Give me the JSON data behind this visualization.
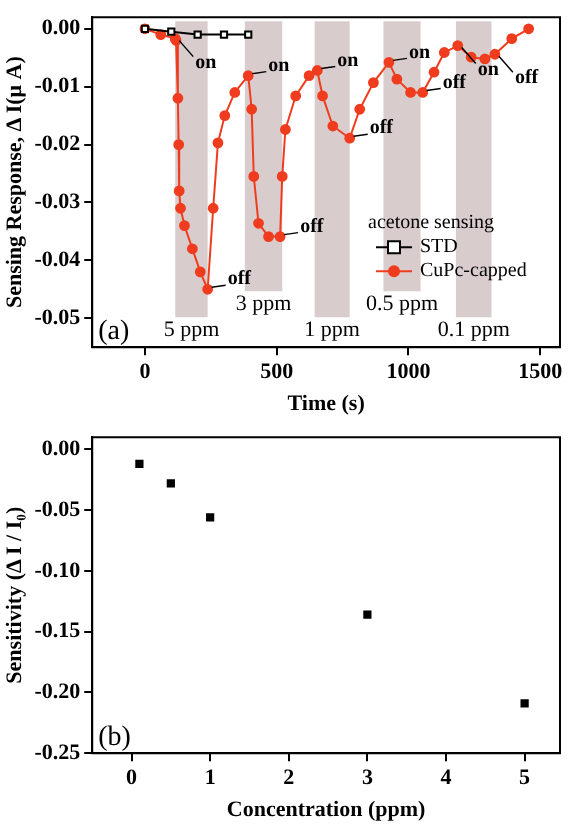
{
  "chart_data": [
    {
      "type": "line",
      "xlabel": "Time (s)",
      "ylabel": "Sensing Response, Δ I(μ A)",
      "legend_title": "acetone sensing",
      "legend": "bottom right",
      "grid": false,
      "xlim": [
        -200,
        1575
      ],
      "xticks": [
        0,
        500,
        1000,
        1500
      ],
      "ylim": [
        -0.055,
        0.002
      ],
      "yticks": [
        -0.05,
        -0.04,
        -0.03,
        -0.02,
        -0.01,
        {
          "value": 0,
          "label": "0.00"
        }
      ],
      "series": [
        {
          "name": "STD",
          "color": "#000000",
          "marker": "square",
          "x": [
            0,
            100,
            200,
            300,
            392
          ],
          "values": [
            0,
            -0.0005,
            -0.001,
            -0.001,
            -0.001
          ]
        },
        {
          "name": "CuPc-capped",
          "color": "#f03c1e",
          "marker": "circle",
          "x": [
            0,
            60,
            115,
            118,
            125,
            128,
            130,
            135,
            150,
            180,
            210,
            238,
            259,
            277,
            303,
            341,
            392,
            405,
            413,
            431,
            469,
            513,
            521,
            533,
            572,
            623,
            654,
            674,
            713,
            777,
            815,
            867,
            926,
            956,
            1008,
            1054,
            1097,
            1136,
            1187,
            1238,
            1290,
            1328,
            1392,
            1456
          ],
          "values": [
            0,
            -0.001,
            -0.0017,
            -0.002,
            -0.012,
            -0.02,
            -0.028,
            -0.031,
            -0.034,
            -0.038,
            -0.042,
            -0.045,
            -0.031,
            -0.0197,
            -0.015,
            -0.011,
            -0.0081,
            -0.0139,
            -0.0255,
            -0.0336,
            -0.0359,
            -0.0359,
            -0.0255,
            -0.0174,
            -0.0116,
            -0.0081,
            -0.0072,
            -0.0116,
            -0.0168,
            -0.0189,
            -0.0139,
            -0.0093,
            -0.0058,
            -0.0087,
            -0.011,
            -0.011,
            -0.0075,
            -0.0041,
            -0.0029,
            -0.0049,
            -0.0052,
            -0.0044,
            -0.0017,
            0.0
          ]
        }
      ],
      "bands": [
        {
          "axis": "x",
          "from": 115,
          "to": 238,
          "label": "5 ppm",
          "color": "#d9cccc"
        },
        {
          "axis": "x",
          "from": 379,
          "to": 521,
          "label": "3 ppm",
          "color": "#d9cccc"
        },
        {
          "axis": "x",
          "from": 644,
          "to": 777,
          "label": "1 ppm",
          "color": "#d9cccc"
        },
        {
          "axis": "x",
          "from": 905,
          "to": 1046,
          "label": "0.5 ppm",
          "color": "#d9cccc"
        },
        {
          "axis": "x",
          "from": 1180,
          "to": 1315,
          "label": "0.1 ppm",
          "color": "#d9cccc"
        }
      ],
      "annotations": [
        "(a)",
        {
          "text": "on",
          "x": 115,
          "y": -0.0017
        },
        {
          "text": "off",
          "x": 238,
          "y": -0.045
        },
        {
          "text": "on",
          "x": 392,
          "y": -0.0081
        },
        {
          "text": "off",
          "x": 513,
          "y": -0.0359
        },
        {
          "text": "on",
          "x": 654,
          "y": -0.0072
        },
        {
          "text": "off",
          "x": 777,
          "y": -0.0189
        },
        {
          "text": "on",
          "x": 926,
          "y": -0.0058
        },
        {
          "text": "off",
          "x": 1054,
          "y": -0.011
        },
        {
          "text": "on",
          "x": 1187,
          "y": -0.0029
        },
        {
          "text": "off",
          "x": 1328,
          "y": -0.0044
        }
      ]
    },
    {
      "type": "scatter",
      "xlabel": "Concentration (ppm)",
      "ylabel": "Sensitivity (Δ I / I₀)",
      "grid": false,
      "marker": "square",
      "color": "#000000",
      "xlim": [
        -0.5,
        5.45
      ],
      "xticks": [
        0,
        1,
        2,
        3,
        4,
        5
      ],
      "ylim": [
        -0.25,
        0.01
      ],
      "yticks": [
        -0.25,
        {
          "value": -0.2,
          "label": "-0.20"
        },
        -0.15,
        {
          "value": -0.1,
          "label": "-0.10"
        },
        -0.05,
        {
          "value": 0,
          "label": "0.00"
        }
      ],
      "x": [
        0.1,
        0.5,
        1,
        3,
        5
      ],
      "values": [
        -0.012,
        -0.028,
        -0.056,
        -0.136,
        -0.209
      ],
      "annotations": [
        "(b)"
      ]
    }
  ]
}
